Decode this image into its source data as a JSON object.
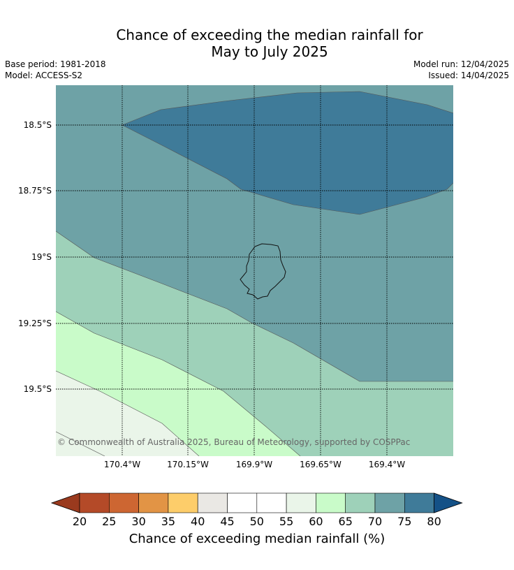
{
  "title_line1": "Chance of exceeding the median rainfall for",
  "title_line2": "May to July 2025",
  "base_period": "Base period: 1981-2018",
  "model": "Model: ACCESS-S2",
  "model_run": "Model run: 12/04/2025",
  "issued": "Issued: 14/04/2025",
  "copyright": "© Commonwealth of Australia 2025, Bureau of Meteorology, supported by COSPPac",
  "lat_ticks": [
    "18.5°S",
    "18.75°S",
    "19°S",
    "19.25°S",
    "19.5°S"
  ],
  "lon_ticks": [
    "170.4°W",
    "170.15°W",
    "169.9°W",
    "169.65°W",
    "169.4°W"
  ],
  "colorbar": {
    "title": "Chance of exceeding median rainfall (%)",
    "ticks": [
      "20",
      "25",
      "30",
      "35",
      "40",
      "45",
      "50",
      "55",
      "60",
      "65",
      "70",
      "75",
      "80"
    ],
    "colors": [
      "#9a3a1e",
      "#b44a28",
      "#cd6632",
      "#e29445",
      "#fdcd6a",
      "#eae8e4",
      "#ffffff",
      "#ffffff",
      "#eaf5e9",
      "#c9fbc9",
      "#9ed1b9",
      "#6ea2a6",
      "#3f7b99",
      "#145187"
    ]
  },
  "map": {
    "region": "Niue",
    "contour_colors": {
      "over_75": "#3f7b99",
      "70_75": "#6ea2a6",
      "65_70": "#9ed1b9",
      "60_65": "#c9fbc9",
      "55_60": "#eaf5e9"
    }
  }
}
